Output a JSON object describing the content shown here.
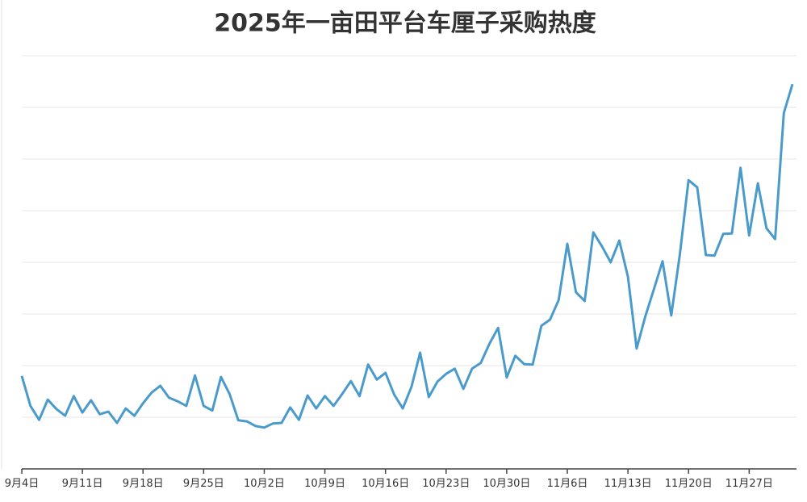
{
  "chart_data": {
    "type": "line",
    "title": "2025年一亩田平台车厘子采购热度",
    "categories": [
      "9月4日",
      null,
      null,
      null,
      null,
      null,
      null,
      "9月11日",
      null,
      null,
      null,
      null,
      null,
      null,
      "9月18日",
      null,
      null,
      null,
      null,
      null,
      null,
      "9月25日",
      null,
      null,
      null,
      null,
      null,
      null,
      "10月2日",
      null,
      null,
      null,
      null,
      null,
      null,
      "10月9日",
      null,
      null,
      null,
      null,
      null,
      null,
      "10月16日",
      null,
      null,
      null,
      null,
      null,
      null,
      "10月23日",
      null,
      null,
      null,
      null,
      null,
      null,
      "10月30日",
      null,
      null,
      null,
      null,
      null,
      null,
      "11月6日",
      null,
      null,
      null,
      null,
      null,
      null,
      "11月13日",
      null,
      null,
      null,
      null,
      null,
      null,
      "11月20日",
      null,
      null,
      null,
      null,
      null,
      null,
      "11月27日",
      null,
      null,
      null,
      null,
      null
    ],
    "values": [
      1.8,
      1.22,
      0.95,
      1.34,
      1.16,
      1.03,
      1.41,
      1.09,
      1.33,
      1.06,
      1.11,
      0.89,
      1.17,
      1.03,
      1.27,
      1.48,
      1.61,
      1.38,
      1.31,
      1.22,
      1.81,
      1.22,
      1.13,
      1.78,
      1.45,
      0.94,
      0.92,
      0.83,
      0.8,
      0.88,
      0.89,
      1.19,
      0.95,
      1.42,
      1.17,
      1.41,
      1.22,
      1.45,
      1.7,
      1.41,
      2.02,
      1.73,
      1.86,
      1.44,
      1.17,
      1.59,
      2.25,
      1.39,
      1.69,
      1.84,
      1.94,
      1.55,
      1.94,
      2.05,
      2.42,
      2.73,
      1.77,
      2.19,
      2.03,
      2.02,
      2.77,
      2.89,
      3.27,
      4.36,
      3.42,
      3.25,
      4.58,
      4.31,
      4.0,
      4.42,
      3.72,
      2.33,
      2.95,
      3.48,
      4.02,
      2.97,
      4.16,
      5.59,
      5.45,
      4.14,
      4.13,
      4.55,
      4.56,
      5.83,
      4.52,
      5.53,
      4.66,
      4.45,
      6.89,
      7.45
    ],
    "color": "#4a9bcc",
    "ylim": [
      0,
      8
    ],
    "yticks": [
      1,
      2,
      3,
      4,
      5,
      6,
      7,
      8
    ],
    "grid": true
  }
}
